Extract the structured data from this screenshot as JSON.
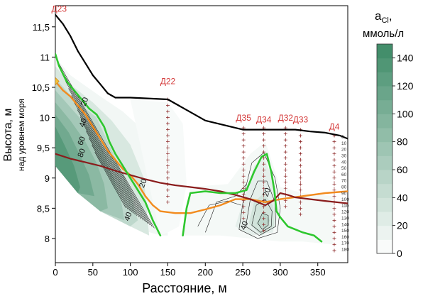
{
  "chart_data": {
    "type": "contour",
    "title": "",
    "xlabel": "Расстояние, м",
    "ylabel": "Высота, м",
    "ylabel_sub": "над уровнем моря",
    "xlim": [
      0,
      390
    ],
    "ylim": [
      7.6,
      11.85
    ],
    "x_ticks": [
      0,
      50,
      100,
      150,
      200,
      250,
      300,
      350
    ],
    "y_ticks": [
      8,
      8.5,
      9,
      9.5,
      10,
      10.5,
      11,
      11.5
    ],
    "y_tick_labels": [
      "8",
      "8,5",
      "9",
      "9,5",
      "10",
      "10,5",
      "11",
      "11,5"
    ],
    "colorbar": {
      "title_main": "a",
      "title_sub": "Cl",
      "title_suffix": ",",
      "title_line2": "ммоль/л",
      "ticks": [
        0,
        20,
        40,
        60,
        80,
        100,
        120,
        140
      ],
      "range": [
        0,
        150
      ],
      "color_low": "#ffffff",
      "color_high": "#3d8a66"
    },
    "contour_labels": [
      {
        "text": "20",
        "x": 42,
        "y": 10.25
      },
      {
        "text": "40",
        "x": 40,
        "y": 9.9
      },
      {
        "text": "60",
        "x": 38,
        "y": 9.6
      },
      {
        "text": "80",
        "x": 38,
        "y": 9.4
      },
      {
        "text": "20",
        "x": 120,
        "y": 8.9
      },
      {
        "text": "40",
        "x": 100,
        "y": 8.35
      },
      {
        "text": "20",
        "x": 285,
        "y": 8.75
      },
      {
        "text": "40",
        "x": 255,
        "y": 8.2
      }
    ],
    "wells": [
      {
        "name": "Д23",
        "x": 5,
        "y_top": 11.7,
        "label_y": 11.75
      },
      {
        "name": "Д22",
        "x": 150,
        "y_top": 10.3,
        "label_y": 10.55,
        "y_bottom": 8.65
      },
      {
        "name": "Д35",
        "x": 251,
        "y_top": 9.83,
        "label_y": 9.95,
        "y_bottom": 8.35
      },
      {
        "name": "Д34",
        "x": 278,
        "y_top": 9.83,
        "label_y": 9.92,
        "y_bottom": 8.1
      },
      {
        "name": "Д32",
        "x": 307,
        "y_top": 9.83,
        "label_y": 9.95,
        "y_bottom": 8.5
      },
      {
        "name": "Д33",
        "x": 327,
        "y_top": 9.8,
        "label_y": 9.92,
        "y_bottom": 8.4
      },
      {
        "name": "Д4",
        "x": 372,
        "y_top": 9.7,
        "label_y": 9.8,
        "y_bottom": 7.8
      }
    ],
    "well_depth_labels": [
      "0",
      "10",
      "20",
      "30",
      "40",
      "50",
      "60",
      "70",
      "80",
      "90",
      "100",
      "110",
      "120",
      "130",
      "140",
      "150",
      "160",
      "170",
      "180"
    ],
    "series": [
      {
        "role": "ground-surface",
        "color": "#000000",
        "x": [
          0,
          10,
          20,
          30,
          40,
          50,
          60,
          70,
          80,
          100,
          150,
          200,
          250,
          300,
          320,
          340,
          360,
          380,
          390
        ],
        "y": [
          11.7,
          11.55,
          11.35,
          11.1,
          10.9,
          10.7,
          10.55,
          10.4,
          10.33,
          10.33,
          10.3,
          9.95,
          9.8,
          9.8,
          9.8,
          9.77,
          9.75,
          9.7,
          9.65
        ]
      },
      {
        "role": "orange-line",
        "color": "#f28b1e",
        "x": [
          0,
          10,
          20,
          30,
          40,
          50,
          60,
          70,
          80,
          90,
          100,
          110,
          120,
          130,
          140,
          160,
          180,
          200,
          220,
          240,
          260,
          280,
          300,
          330,
          360,
          390
        ],
        "y": [
          10.6,
          10.45,
          10.35,
          10.2,
          10.05,
          9.85,
          9.65,
          9.45,
          9.3,
          9.15,
          9.05,
          8.9,
          8.7,
          8.55,
          8.45,
          8.42,
          8.42,
          8.48,
          8.55,
          8.65,
          8.65,
          8.6,
          8.65,
          8.7,
          8.75,
          8.78
        ]
      },
      {
        "role": "dark-red-line",
        "color": "#8a1c1c",
        "x": [
          0,
          20,
          40,
          60,
          80,
          100,
          120,
          140,
          160,
          180,
          200,
          220,
          240,
          260,
          280,
          290,
          300,
          310,
          320,
          340,
          360,
          390
        ],
        "y": [
          9.4,
          9.32,
          9.26,
          9.2,
          9.12,
          9.05,
          8.98,
          8.92,
          8.88,
          8.85,
          8.82,
          8.78,
          8.72,
          8.65,
          8.55,
          8.62,
          8.75,
          8.72,
          8.68,
          8.65,
          8.62,
          8.58
        ]
      },
      {
        "role": "green-left",
        "color": "#2ec72e",
        "x": [
          0,
          5,
          15,
          25,
          35,
          45,
          55,
          65,
          72,
          80,
          90,
          100,
          110,
          120,
          130,
          140
        ],
        "y": [
          11.05,
          10.85,
          10.6,
          10.45,
          10.3,
          10.15,
          10.05,
          9.85,
          9.6,
          9.4,
          9.2,
          9.0,
          8.8,
          8.6,
          8.3,
          8.05
        ]
      },
      {
        "role": "green-right",
        "color": "#2ec72e",
        "x": [
          170,
          175,
          180,
          200,
          220,
          240,
          255,
          265,
          275,
          282,
          288,
          292,
          295,
          300,
          310,
          320,
          330,
          345,
          355
        ],
        "y": [
          8.05,
          8.5,
          8.75,
          8.78,
          8.75,
          8.75,
          8.8,
          9.1,
          9.35,
          9.4,
          9.1,
          8.8,
          8.45,
          8.35,
          8.2,
          8.15,
          8.1,
          8.05,
          7.95
        ]
      }
    ]
  }
}
